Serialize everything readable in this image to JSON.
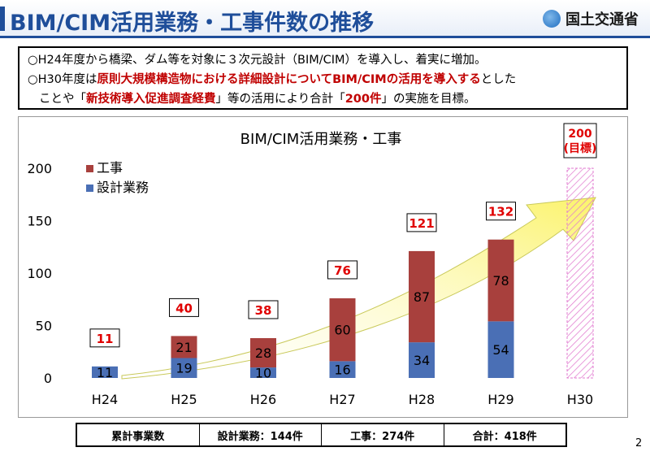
{
  "header": {
    "title": "BIM/CIM活用業務・工事件数の推移",
    "logo_text": "国土交通省",
    "logo_icon": "mlit-logo-icon"
  },
  "notice": {
    "line1": "○H24年度から橋梁、ダム等を対象に３次元設計（BIM/CIM）を導入し、着実に増加。",
    "line2_pre": "○H30年度は",
    "line2_red": "原則大規模構造物における詳細設計についてBIM/CIMの活用を導入する",
    "line2_post": "とした",
    "line3_a": "ことや「",
    "line3_red1": "新技術導入促進調査経費",
    "line3_b": "」等の活用により合計「",
    "line3_red2": "200件",
    "line3_c": "」の実施を目標。"
  },
  "chart_data": {
    "type": "bar",
    "stacked": true,
    "title": "BIM/CIM活用業務・工事",
    "categories": [
      "H24",
      "H25",
      "H26",
      "H27",
      "H28",
      "H29",
      "H30"
    ],
    "series": [
      {
        "name": "設計業務",
        "color": "#4a6fb5",
        "values": [
          11,
          19,
          10,
          16,
          34,
          54,
          null
        ]
      },
      {
        "name": "工事",
        "color": "#a8403d",
        "values": [
          null,
          21,
          28,
          60,
          87,
          78,
          null
        ]
      }
    ],
    "totals": [
      "11",
      "40",
      "38",
      "76",
      "121",
      "132",
      null
    ],
    "target": {
      "category": "H30",
      "value": 200,
      "label1": "200",
      "label2": "(目標)"
    },
    "yticks": [
      0,
      50,
      100,
      150,
      200
    ],
    "ylim": [
      0,
      200
    ],
    "legend_position": "top-left",
    "grid": false
  },
  "summary": {
    "cells": [
      "累計事業数",
      "設計業務：144件",
      "工事：274件",
      "合計：418件"
    ]
  },
  "page_number": "2"
}
